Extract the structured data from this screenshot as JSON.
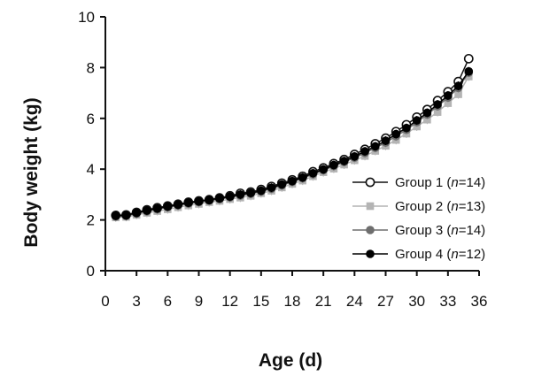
{
  "chart_data": {
    "type": "line",
    "title": "",
    "xlabel": "Age (d)",
    "ylabel": "Body weight (kg)",
    "xlim": [
      0,
      36
    ],
    "ylim": [
      0,
      10
    ],
    "xticks": [
      "0",
      "3",
      "6",
      "9",
      "12",
      "15",
      "18",
      "21",
      "24",
      "27",
      "30",
      "33",
      "36"
    ],
    "yticks": [
      "0",
      "2",
      "4",
      "6",
      "8",
      "10"
    ],
    "grid": false,
    "legend_position": "bottom-right",
    "x": [
      1,
      2,
      3,
      4,
      5,
      6,
      7,
      8,
      9,
      10,
      11,
      12,
      13,
      14,
      15,
      16,
      17,
      18,
      19,
      20,
      21,
      22,
      23,
      24,
      25,
      26,
      27,
      28,
      29,
      30,
      31,
      32,
      33,
      34,
      35
    ],
    "series": [
      {
        "name": "Group 1",
        "n_label": "14",
        "marker": "open-circle",
        "color": "#111111",
        "values": [
          2.18,
          2.2,
          2.3,
          2.4,
          2.48,
          2.55,
          2.62,
          2.7,
          2.75,
          2.8,
          2.87,
          2.95,
          3.05,
          3.1,
          3.2,
          3.32,
          3.45,
          3.58,
          3.72,
          3.9,
          4.05,
          4.22,
          4.38,
          4.58,
          4.78,
          5.0,
          5.22,
          5.48,
          5.75,
          6.05,
          6.35,
          6.7,
          7.05,
          7.45,
          8.35
        ]
      },
      {
        "name": "Group 2",
        "n_label": "13",
        "marker": "square",
        "color": "#b4b4b4",
        "values": [
          2.1,
          2.12,
          2.2,
          2.28,
          2.35,
          2.42,
          2.5,
          2.57,
          2.63,
          2.7,
          2.75,
          2.82,
          2.88,
          2.95,
          3.05,
          3.15,
          3.28,
          3.42,
          3.55,
          3.72,
          3.88,
          4.02,
          4.18,
          4.35,
          4.52,
          4.72,
          4.92,
          5.15,
          5.4,
          5.68,
          5.95,
          6.25,
          6.6,
          6.95,
          7.65
        ]
      },
      {
        "name": "Group 3",
        "n_label": "14",
        "marker": "filled-circle",
        "color": "#6e6e6e",
        "values": [
          2.14,
          2.16,
          2.25,
          2.34,
          2.42,
          2.5,
          2.57,
          2.64,
          2.7,
          2.76,
          2.82,
          2.89,
          2.96,
          3.03,
          3.12,
          3.23,
          3.36,
          3.5,
          3.64,
          3.8,
          3.96,
          4.12,
          4.28,
          4.45,
          4.64,
          4.84,
          5.05,
          5.3,
          5.55,
          5.85,
          6.15,
          6.48,
          6.82,
          7.2,
          7.8
        ]
      },
      {
        "name": "Group 4",
        "n_label": "12",
        "marker": "filled-circle",
        "color": "#000000",
        "values": [
          2.17,
          2.18,
          2.28,
          2.37,
          2.45,
          2.53,
          2.6,
          2.68,
          2.73,
          2.79,
          2.85,
          2.92,
          3.0,
          3.06,
          3.15,
          3.27,
          3.4,
          3.53,
          3.67,
          3.84,
          3.99,
          4.16,
          4.32,
          4.5,
          4.7,
          4.9,
          5.12,
          5.38,
          5.62,
          5.92,
          6.22,
          6.55,
          6.9,
          7.28,
          7.85
        ]
      }
    ]
  },
  "legend": {
    "n_symbol": "n",
    "equals": "=",
    "open_paren": "(",
    "close_paren": ")"
  }
}
